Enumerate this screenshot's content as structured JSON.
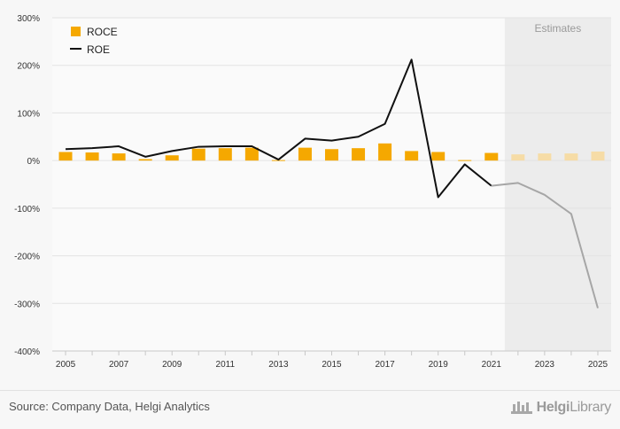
{
  "chart_data": {
    "type": "bar+line",
    "categories": [
      "2005",
      "2006",
      "2007",
      "2008",
      "2009",
      "2010",
      "2011",
      "2012",
      "2013",
      "2014",
      "2015",
      "2016",
      "2017",
      "2018",
      "2019",
      "2020",
      "2021",
      "2022",
      "2023",
      "2024",
      "2025"
    ],
    "x_tick_labels": [
      "2005",
      "2007",
      "2009",
      "2011",
      "2013",
      "2015",
      "2017",
      "2019",
      "2021",
      "2023",
      "2025"
    ],
    "y_tick_labels": [
      "300%",
      "200%",
      "100%",
      "0%",
      "-100%",
      "-200%",
      "-300%",
      "-400%"
    ],
    "ylim": [
      -400,
      300
    ],
    "estimates_from": "2022",
    "estimates_label": "Estimates",
    "series": [
      {
        "name": "ROCE",
        "type": "bar",
        "color": "#f5a800",
        "estimate_color": "#f6dca6",
        "values": [
          18,
          17,
          15,
          3,
          11,
          25,
          26,
          27,
          1,
          27,
          24,
          26,
          36,
          20,
          18,
          1,
          16,
          13,
          15,
          15,
          19
        ]
      },
      {
        "name": "ROE",
        "type": "line",
        "color": "#111111",
        "estimate_color": "#a6a6a6",
        "values": [
          24,
          26,
          30,
          8,
          20,
          29,
          30,
          30,
          2,
          46,
          42,
          50,
          77,
          212,
          -77,
          -8,
          -53,
          -47,
          -72,
          -112,
          -310
        ]
      }
    ],
    "grid": true,
    "legend_position": "top-left"
  },
  "footer": {
    "source": "Source: Company Data, Helgi Analytics",
    "brand_prefix": "Helgi",
    "brand_suffix": "Library"
  }
}
